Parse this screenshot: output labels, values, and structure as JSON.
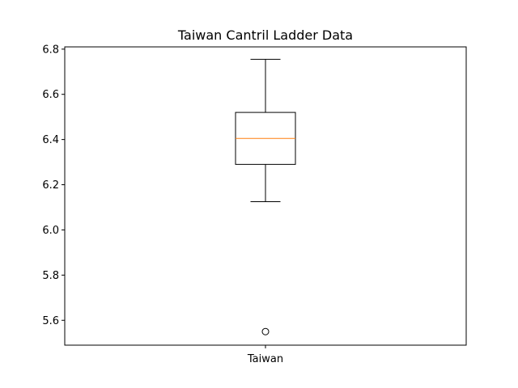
{
  "chart_data": {
    "type": "box",
    "title": "Taiwan Cantril Ladder Data",
    "xlabel": "",
    "ylabel": "",
    "ylim": [
      5.49,
      6.81
    ],
    "yticks": [
      "5.6",
      "5.8",
      "6.0",
      "6.2",
      "6.4",
      "6.6",
      "6.8"
    ],
    "categories": [
      "Taiwan"
    ],
    "boxes": [
      {
        "category": "Taiwan",
        "whisker_low": 6.125,
        "q1": 6.29,
        "median": 6.405,
        "q3": 6.52,
        "whisker_high": 6.755,
        "outliers": [
          5.55
        ]
      }
    ],
    "grid": false,
    "legend": "none",
    "colors": {
      "box": "#000000",
      "median": "#ff7f0e",
      "outlier": "#000000"
    }
  }
}
